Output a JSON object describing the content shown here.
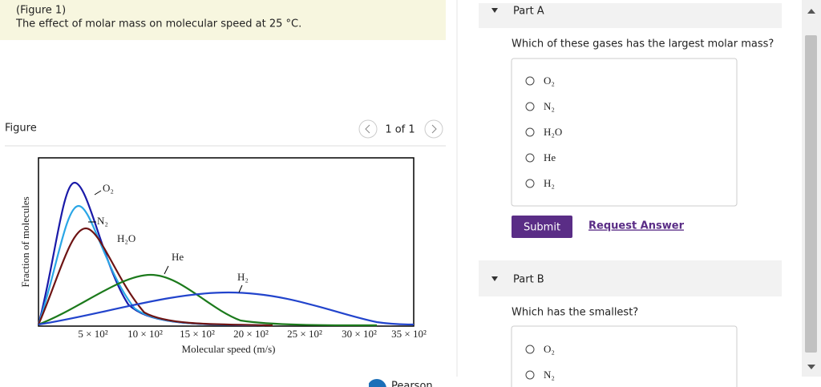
{
  "figure_caption": {
    "label": "(Figure 1)",
    "text": "The effect of molar mass on molecular speed at 25 °C."
  },
  "figure_panel": {
    "title": "Figure",
    "pager": "1 of 1"
  },
  "graph": {
    "y_label": "Fraction of molecules",
    "x_label": "Molecular speed (m/s)",
    "x_ticks": [
      "5 × 10²",
      "10 × 10²",
      "15 × 10²",
      "20 × 10²",
      "25 × 10²",
      "30 × 10²",
      "35 × 10²"
    ],
    "curve_labels": [
      "O₂",
      "N₂",
      "H₂O",
      "He",
      "H₂"
    ]
  },
  "part_a": {
    "title": "Part A",
    "question": "Which of these gases has the largest molar mass?",
    "options": [
      "O₂",
      "N₂",
      "H₂O",
      "He",
      "H₂"
    ],
    "submit": "Submit",
    "request": "Request Answer"
  },
  "part_b": {
    "title": "Part B",
    "question": "Which has the smallest?",
    "options": [
      "O₂",
      "N₂"
    ]
  },
  "footer": {
    "brand": "Pearson"
  }
}
